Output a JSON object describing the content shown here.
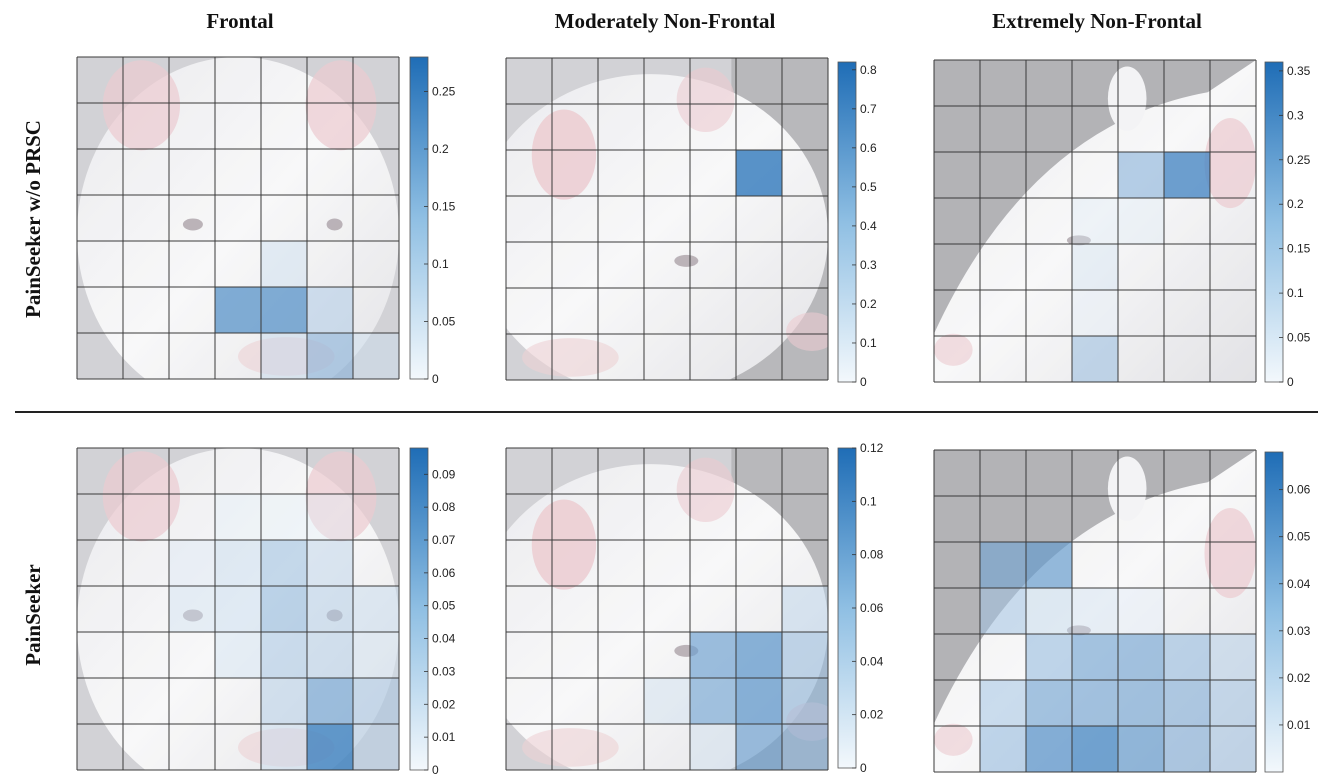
{
  "column_titles": [
    "Frontal",
    "Moderately Non-Frontal",
    "Extremely Non-Frontal"
  ],
  "row_titles": [
    "PainSeeker w/o PRSC",
    "PainSeeker"
  ],
  "colors": {
    "low": "#eef5fb",
    "high": "#1f6db6",
    "divider": "#222222",
    "grid": "#3a3a3a"
  },
  "chart_data": [
    {
      "type": "heatmap",
      "row": "PainSeeker w/o PRSC",
      "column": "Frontal",
      "grid": [
        7,
        7
      ],
      "colorbar_max": 0.28,
      "colorbar_ticks": [
        "0",
        "0.05",
        "0.1",
        "0.15",
        "0.2",
        "0.25"
      ],
      "cells": [
        [
          5,
          3,
          0.21
        ],
        [
          5,
          4,
          0.21
        ],
        [
          5,
          5,
          0.09
        ],
        [
          6,
          5,
          0.14
        ],
        [
          6,
          6,
          0.05
        ],
        [
          4,
          4,
          0.05
        ],
        [
          6,
          4,
          0.06
        ]
      ]
    },
    {
      "type": "heatmap",
      "row": "PainSeeker w/o PRSC",
      "column": "Moderately Non-Frontal",
      "grid": [
        7,
        7
      ],
      "colorbar_max": 0.82,
      "colorbar_ticks": [
        "0",
        "0.1",
        "0.2",
        "0.3",
        "0.4",
        "0.5",
        "0.6",
        "0.7",
        "0.8"
      ],
      "cells": [
        [
          2,
          5,
          0.75
        ]
      ]
    },
    {
      "type": "heatmap",
      "row": "PainSeeker w/o PRSC",
      "column": "Extremely Non-Frontal",
      "grid": [
        7,
        7
      ],
      "colorbar_max": 0.36,
      "colorbar_ticks": [
        "0",
        "0.05",
        "0.1",
        "0.15",
        "0.2",
        "0.25",
        "0.3",
        "0.35"
      ],
      "cells": [
        [
          2,
          4,
          0.18
        ],
        [
          2,
          5,
          0.3
        ],
        [
          3,
          3,
          0.03
        ],
        [
          3,
          4,
          0.03
        ],
        [
          4,
          3,
          0.05
        ],
        [
          6,
          3,
          0.15
        ],
        [
          5,
          3,
          0.02
        ]
      ]
    },
    {
      "type": "heatmap",
      "row": "PainSeeker",
      "column": "Frontal",
      "grid": [
        7,
        7
      ],
      "colorbar_max": 0.098,
      "colorbar_ticks": [
        "0",
        "0.01",
        "0.02",
        "0.03",
        "0.04",
        "0.05",
        "0.06",
        "0.07",
        "0.08",
        "0.09"
      ],
      "cells": [
        [
          2,
          2,
          0.01
        ],
        [
          2,
          3,
          0.02
        ],
        [
          2,
          4,
          0.04
        ],
        [
          2,
          5,
          0.025
        ],
        [
          3,
          2,
          0.015
        ],
        [
          3,
          3,
          0.02
        ],
        [
          3,
          4,
          0.045
        ],
        [
          3,
          5,
          0.03
        ],
        [
          3,
          6,
          0.02
        ],
        [
          4,
          3,
          0.015
        ],
        [
          4,
          4,
          0.035
        ],
        [
          4,
          5,
          0.03
        ],
        [
          4,
          6,
          0.015
        ],
        [
          5,
          4,
          0.03
        ],
        [
          5,
          5,
          0.06
        ],
        [
          5,
          6,
          0.035
        ],
        [
          6,
          4,
          0.02
        ],
        [
          6,
          5,
          0.085
        ],
        [
          6,
          6,
          0.03
        ],
        [
          1,
          3,
          0.005
        ],
        [
          1,
          4,
          0.005
        ],
        [
          1,
          5,
          0.005
        ]
      ]
    },
    {
      "type": "heatmap",
      "row": "PainSeeker",
      "column": "Moderately Non-Frontal",
      "grid": [
        7,
        7
      ],
      "colorbar_max": 0.12,
      "colorbar_ticks": [
        "0",
        "0.02",
        "0.04",
        "0.06",
        "0.08",
        "0.1",
        "0.12"
      ],
      "cells": [
        [
          4,
          4,
          0.075
        ],
        [
          4,
          5,
          0.085
        ],
        [
          4,
          6,
          0.05
        ],
        [
          5,
          4,
          0.07
        ],
        [
          5,
          5,
          0.085
        ],
        [
          5,
          6,
          0.055
        ],
        [
          6,
          5,
          0.075
        ],
        [
          6,
          6,
          0.06
        ],
        [
          3,
          6,
          0.03
        ],
        [
          5,
          3,
          0.02
        ],
        [
          6,
          4,
          0.02
        ]
      ]
    },
    {
      "type": "heatmap",
      "row": "PainSeeker",
      "column": "Extremely Non-Frontal",
      "grid": [
        7,
        7
      ],
      "colorbar_max": 0.068,
      "colorbar_ticks": [
        "0.01",
        "0.02",
        "0.03",
        "0.04",
        "0.05",
        "0.06"
      ],
      "cells": [
        [
          2,
          1,
          0.04
        ],
        [
          2,
          2,
          0.045
        ],
        [
          3,
          1,
          0.025
        ],
        [
          3,
          2,
          0.015
        ],
        [
          4,
          2,
          0.03
        ],
        [
          4,
          3,
          0.04
        ],
        [
          4,
          4,
          0.04
        ],
        [
          4,
          5,
          0.03
        ],
        [
          4,
          6,
          0.02
        ],
        [
          5,
          1,
          0.025
        ],
        [
          5,
          2,
          0.04
        ],
        [
          5,
          3,
          0.04
        ],
        [
          5,
          4,
          0.04
        ],
        [
          5,
          5,
          0.035
        ],
        [
          5,
          6,
          0.025
        ],
        [
          6,
          1,
          0.03
        ],
        [
          6,
          2,
          0.05
        ],
        [
          6,
          3,
          0.055
        ],
        [
          6,
          4,
          0.045
        ],
        [
          6,
          5,
          0.035
        ],
        [
          6,
          6,
          0.025
        ],
        [
          3,
          3,
          0.01
        ],
        [
          3,
          4,
          0.005
        ]
      ]
    }
  ]
}
